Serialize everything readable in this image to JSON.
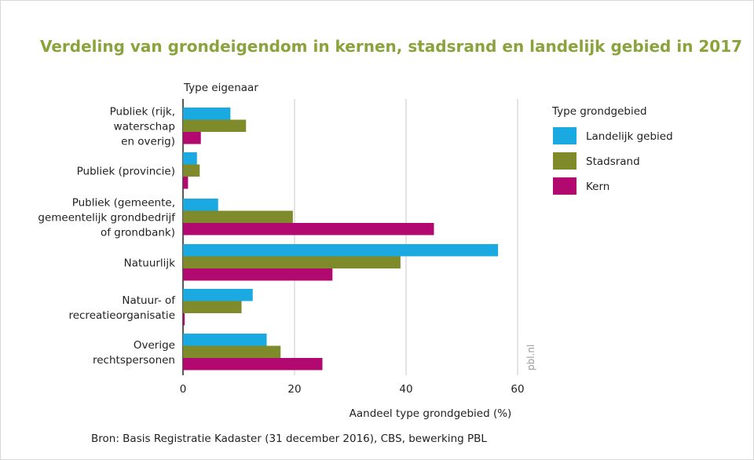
{
  "chart_data": {
    "type": "bar",
    "orientation": "horizontal",
    "title": "Verdeling van grondeigendom in kernen, stadsrand en landelijk gebied in 2017",
    "category_axis_title": "Type eigenaar",
    "xlabel": "Aandeel type grondgebied (%)",
    "xlim": [
      0,
      60
    ],
    "xticks": [
      "0",
      "20",
      "40",
      "60"
    ],
    "grid": "vertical",
    "legend_title": "Type grondgebied",
    "legend_position": "right",
    "categories": [
      [
        "Publiek (rijk,",
        "waterschap",
        "en overig)"
      ],
      [
        "Publiek (provincie)"
      ],
      [
        "Publiek (gemeente,",
        "gemeentelijk grondbedrijf",
        "of grondbank)"
      ],
      [
        "Natuurlijk"
      ],
      [
        "Natuur- of",
        "recreatieorganisatie"
      ],
      [
        "Overige",
        "rechtspersonen"
      ]
    ],
    "series": [
      {
        "name": "Landelijk gebied",
        "color": "#1aa9e1",
        "values": [
          8.5,
          2.5,
          6.3,
          56.5,
          12.5,
          15.0
        ]
      },
      {
        "name": "Stadsrand",
        "color": "#7f8b2a",
        "values": [
          11.3,
          3.0,
          19.7,
          39.0,
          10.5,
          17.5
        ]
      },
      {
        "name": "Kern",
        "color": "#b1096f",
        "values": [
          3.2,
          0.9,
          45.0,
          26.8,
          0.3,
          25.0
        ]
      }
    ]
  },
  "source": "Bron: Basis Registratie Kadaster (31 december 2016), CBS, bewerking PBL",
  "watermark": "pbl.nl"
}
